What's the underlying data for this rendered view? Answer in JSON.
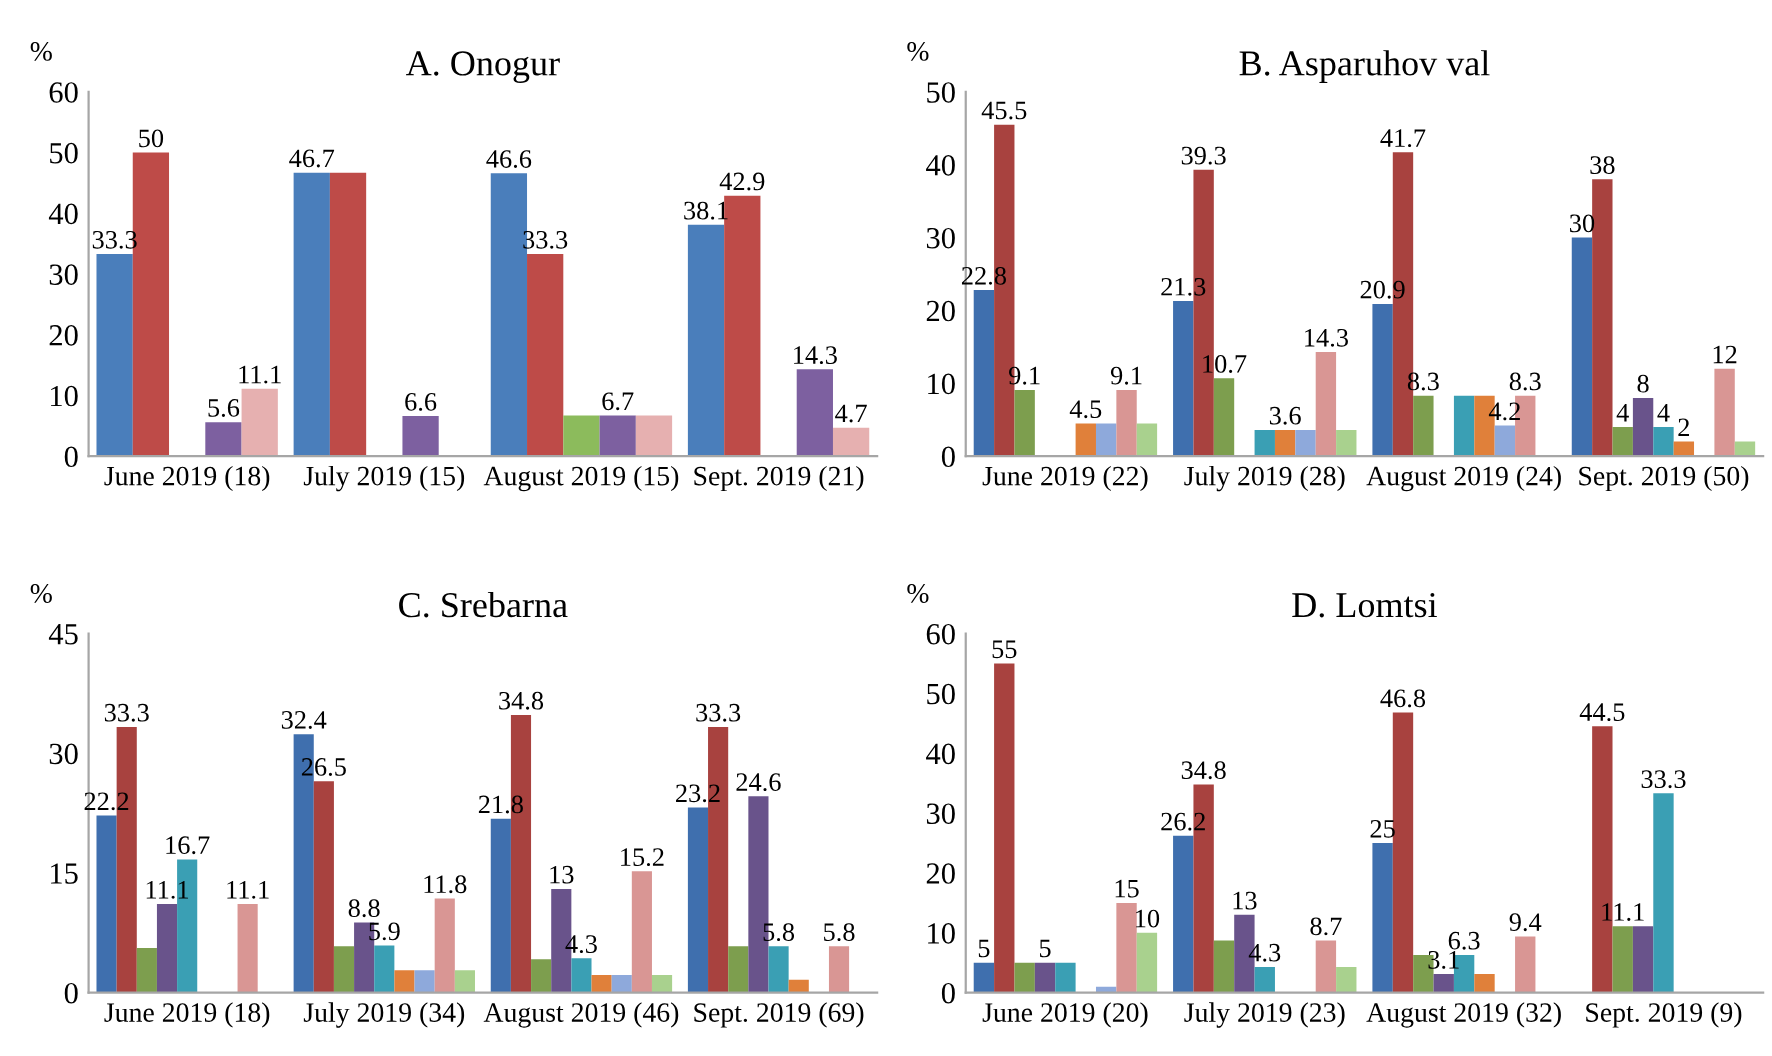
{
  "chart_data": [
    {
      "type": "bar",
      "title": "A. Onogur",
      "ylabel": "%",
      "categories": [
        "June 2019 (18)",
        "July 2019 (15)",
        "August 2019 (15)",
        "Sept. 2019 (21)"
      ],
      "ylim": [
        0,
        60
      ],
      "yticks": [
        0,
        10,
        20,
        30,
        40,
        50,
        60
      ],
      "series": [
        {
          "color": "#4a7ebb",
          "values": [
            33.3,
            46.7,
            46.6,
            38.1
          ],
          "value_labels": [
            "33.3",
            "46.7",
            "46.6",
            "38.1"
          ]
        },
        {
          "color": "#be4b48",
          "values": [
            50,
            46.7,
            33.3,
            42.9
          ],
          "value_labels": [
            "50",
            null,
            "33.3",
            "42.9"
          ]
        },
        {
          "color": "#8cbb5c",
          "values": [
            null,
            null,
            6.7,
            null
          ],
          "value_labels": [
            null,
            null,
            null,
            null
          ]
        },
        {
          "color": "#7d60a0",
          "values": [
            5.6,
            6.6,
            6.7,
            14.3
          ],
          "value_labels": [
            "5.6",
            "6.6",
            "6.7",
            "14.3"
          ]
        },
        {
          "color": "#e6b0b0",
          "values": [
            11.1,
            null,
            6.7,
            4.7
          ],
          "value_labels": [
            "11.1",
            null,
            null,
            "4.7"
          ]
        }
      ]
    },
    {
      "type": "bar",
      "title": "B. Asparuhov val",
      "ylabel": "%",
      "categories": [
        "June 2019 (22)",
        "July 2019 (28)",
        "August 2019 (24)",
        "Sept. 2019 (50)"
      ],
      "ylim": [
        0,
        50
      ],
      "yticks": [
        0,
        10,
        20,
        30,
        40,
        50
      ],
      "series": [
        {
          "color": "#3f6fae",
          "values": [
            22.8,
            21.3,
            20.9,
            30
          ],
          "value_labels": [
            "22.8",
            "21.3",
            "20.9",
            "30"
          ]
        },
        {
          "color": "#a8423f",
          "values": [
            45.5,
            39.3,
            41.7,
            38
          ],
          "value_labels": [
            "45.5",
            "39.3",
            "41.7",
            "38"
          ]
        },
        {
          "color": "#7d9e4e",
          "values": [
            9.1,
            10.7,
            8.3,
            4
          ],
          "value_labels": [
            "9.1",
            "10.7",
            "8.3",
            "4"
          ]
        },
        {
          "color": "#69538b",
          "values": [
            null,
            null,
            null,
            8
          ],
          "value_labels": [
            null,
            null,
            null,
            "8"
          ]
        },
        {
          "color": "#3a9fb4",
          "values": [
            null,
            3.6,
            8.3,
            4
          ],
          "value_labels": [
            null,
            null,
            null,
            "4"
          ]
        },
        {
          "color": "#e0803a",
          "values": [
            4.5,
            3.6,
            8.3,
            2
          ],
          "value_labels": [
            "4.5",
            "3.6",
            null,
            "2"
          ]
        },
        {
          "color": "#8ea9db",
          "values": [
            4.5,
            3.6,
            4.2,
            null
          ],
          "value_labels": [
            null,
            null,
            "4.2",
            null
          ]
        },
        {
          "color": "#d99694",
          "values": [
            9.1,
            14.3,
            8.3,
            12
          ],
          "value_labels": [
            "9.1",
            "14.3",
            "8.3",
            "12"
          ]
        },
        {
          "color": "#a9d18e",
          "values": [
            4.5,
            3.6,
            null,
            2
          ],
          "value_labels": [
            null,
            null,
            null,
            null
          ]
        }
      ]
    },
    {
      "type": "bar",
      "title": "C. Srebarna",
      "ylabel": "%",
      "categories": [
        "June 2019 (18)",
        "July 2019 (34)",
        "August 2019 (46)",
        "Sept. 2019 (69)"
      ],
      "ylim": [
        0,
        45
      ],
      "yticks": [
        0,
        15,
        30,
        45
      ],
      "series": [
        {
          "color": "#3f6fae",
          "values": [
            22.2,
            32.4,
            21.8,
            23.2
          ],
          "value_labels": [
            "22.2",
            "32.4",
            "21.8",
            "23.2"
          ]
        },
        {
          "color": "#a8423f",
          "values": [
            33.3,
            26.5,
            34.8,
            33.3
          ],
          "value_labels": [
            "33.3",
            "26.5",
            "34.8",
            "33.3"
          ]
        },
        {
          "color": "#7d9e4e",
          "values": [
            5.6,
            5.8,
            4.2,
            5.8
          ],
          "value_labels": [
            null,
            null,
            null,
            null
          ]
        },
        {
          "color": "#69538b",
          "values": [
            11.1,
            8.8,
            13,
            24.6
          ],
          "value_labels": [
            "11.1",
            "8.8",
            "13",
            "24.6"
          ]
        },
        {
          "color": "#3a9fb4",
          "values": [
            16.7,
            5.9,
            4.3,
            5.8
          ],
          "value_labels": [
            "16.7",
            "5.9",
            "4.3",
            "5.8"
          ]
        },
        {
          "color": "#e0803a",
          "values": [
            null,
            2.8,
            2.2,
            1.6
          ],
          "value_labels": [
            null,
            null,
            null,
            null
          ]
        },
        {
          "color": "#8ea9db",
          "values": [
            null,
            2.8,
            2.2,
            null
          ],
          "value_labels": [
            null,
            null,
            null,
            null
          ]
        },
        {
          "color": "#d99694",
          "values": [
            11.1,
            11.8,
            15.2,
            5.8
          ],
          "value_labels": [
            "11.1",
            "11.8",
            "15.2",
            "5.8"
          ]
        },
        {
          "color": "#a9d18e",
          "values": [
            null,
            2.8,
            2.2,
            null
          ],
          "value_labels": [
            null,
            null,
            null,
            null
          ]
        }
      ]
    },
    {
      "type": "bar",
      "title": "D. Lomtsi",
      "ylabel": "%",
      "categories": [
        "June 2019 (20)",
        "July 2019 (23)",
        "August 2019 (32)",
        "Sept. 2019 (9)"
      ],
      "ylim": [
        0,
        60
      ],
      "yticks": [
        0,
        10,
        20,
        30,
        40,
        50,
        60
      ],
      "series": [
        {
          "color": "#3f6fae",
          "values": [
            5,
            26.2,
            25,
            null
          ],
          "value_labels": [
            "5",
            "26.2",
            "25",
            null
          ]
        },
        {
          "color": "#a8423f",
          "values": [
            55,
            34.8,
            46.8,
            44.5
          ],
          "value_labels": [
            "55",
            "34.8",
            "46.8",
            "44.5"
          ]
        },
        {
          "color": "#7d9e4e",
          "values": [
            5,
            8.7,
            6.3,
            11.1
          ],
          "value_labels": [
            null,
            null,
            null,
            "11.1"
          ]
        },
        {
          "color": "#69538b",
          "values": [
            5,
            13,
            3.1,
            11.1
          ],
          "value_labels": [
            "5",
            "13",
            "3.1",
            null
          ]
        },
        {
          "color": "#3a9fb4",
          "values": [
            5,
            4.3,
            6.3,
            33.3
          ],
          "value_labels": [
            null,
            "4.3",
            "6.3",
            "33.3"
          ]
        },
        {
          "color": "#e0803a",
          "values": [
            null,
            null,
            3.1,
            null
          ],
          "value_labels": [
            null,
            null,
            null,
            null
          ]
        },
        {
          "color": "#8ea9db",
          "values": [
            1,
            null,
            null,
            null
          ],
          "value_labels": [
            null,
            null,
            null,
            null
          ]
        },
        {
          "color": "#d99694",
          "values": [
            15,
            8.7,
            9.4,
            null
          ],
          "value_labels": [
            "15",
            "8.7",
            "9.4",
            null
          ]
        },
        {
          "color": "#a9d18e",
          "values": [
            10,
            4.3,
            null,
            null
          ],
          "value_labels": [
            "10",
            null,
            null,
            null
          ]
        }
      ]
    }
  ]
}
